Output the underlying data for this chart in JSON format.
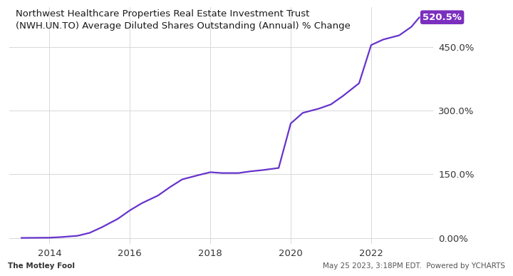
{
  "title_line1": "Northwest Healthcare Properties Real Estate Investment Trust",
  "title_line2": "(NWH.UN.TO) Average Diluted Shares Outstanding (Annual) % Change",
  "line_color": "#6633cc",
  "background_color": "#ffffff",
  "grid_color": "#d8d8d8",
  "x_values": [
    2013.3,
    2014.0,
    2014.3,
    2014.7,
    2015.0,
    2015.3,
    2015.7,
    2016.0,
    2016.3,
    2016.7,
    2017.0,
    2017.3,
    2017.7,
    2018.0,
    2018.3,
    2018.7,
    2019.0,
    2019.3,
    2019.7,
    2020.0,
    2020.3,
    2020.7,
    2021.0,
    2021.3,
    2021.7,
    2022.0,
    2022.3,
    2022.7,
    2023.0,
    2023.2
  ],
  "y_values": [
    0.0,
    0.5,
    2.0,
    5.0,
    12.0,
    25.0,
    45.0,
    65.0,
    82.0,
    100.0,
    120.0,
    138.0,
    148.0,
    155.0,
    153.0,
    153.0,
    157.0,
    160.0,
    165.0,
    270.0,
    295.0,
    305.0,
    315.0,
    335.0,
    365.0,
    455.0,
    468.0,
    478.0,
    498.0,
    520.5
  ],
  "yticks": [
    0.0,
    150.0,
    300.0,
    450.0
  ],
  "ytick_labels": [
    "0.00%",
    "150.0%",
    "300.0%",
    "450.0%"
  ],
  "xticks": [
    2014,
    2016,
    2018,
    2020,
    2022
  ],
  "xtick_labels": [
    "2014",
    "2016",
    "2018",
    "2020",
    "2022"
  ],
  "xlim": [
    2013.0,
    2023.55
  ],
  "ylim": [
    -15.0,
    545.0
  ],
  "end_label": "520.5%",
  "end_label_bg": "#7b2fbe",
  "end_label_text_color": "#ffffff",
  "footer_left": "The Motley Fool",
  "footer_right": "May 25 2023, 3:18PM EDT.  Powered by YCHARTS",
  "title_fontsize": 9.5,
  "tick_fontsize": 9.5,
  "footer_fontsize": 7.5
}
